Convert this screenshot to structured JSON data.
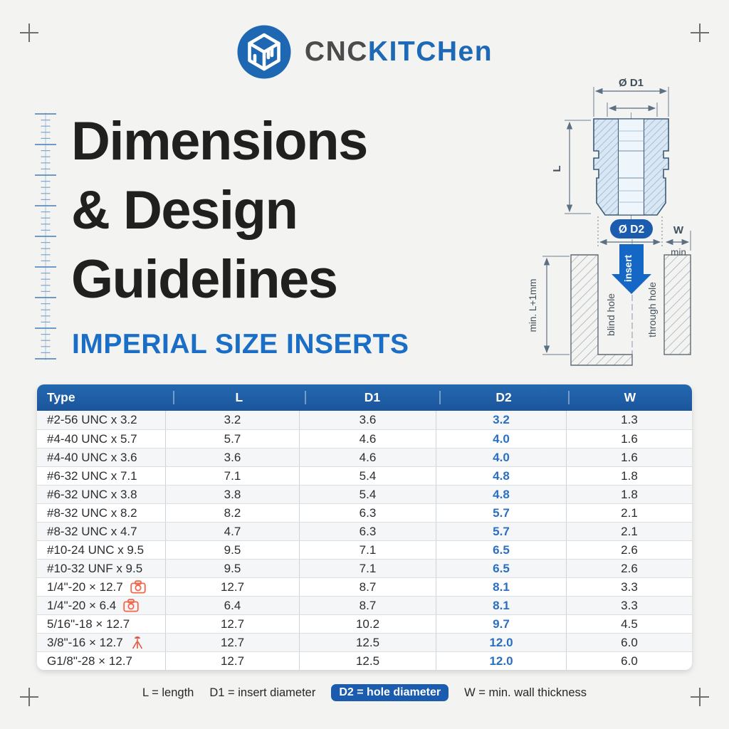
{
  "brand": {
    "name_primary": "CNC",
    "name_secondary": "KITCHen",
    "logo_icon": "cnc-kitchen-cube-icon"
  },
  "title": {
    "line1": "Dimensions",
    "line2": "& Design",
    "line3": "Guidelines",
    "subtitle": "IMPERIAL SIZE INSERTS"
  },
  "diagram": {
    "d1_label": "Ø D1",
    "l_label": "L",
    "d2_label": "Ø D2",
    "w_label": "W",
    "min_label": "min",
    "insert_label": "insert",
    "blind_hole_label": "blind hole",
    "through_hole_label": "through hole",
    "depth_label": "min. L+1mm"
  },
  "table": {
    "columns": [
      "Type",
      "L",
      "D1",
      "D2",
      "W"
    ],
    "rows": [
      {
        "type": "#2-56 UNC x 3.2",
        "icon": null,
        "l": "3.2",
        "d1": "3.6",
        "d2": "3.2",
        "w": "1.3"
      },
      {
        "type": "#4-40 UNC x 5.7",
        "icon": null,
        "l": "5.7",
        "d1": "4.6",
        "d2": "4.0",
        "w": "1.6"
      },
      {
        "type": "#4-40 UNC x 3.6",
        "icon": null,
        "l": "3.6",
        "d1": "4.6",
        "d2": "4.0",
        "w": "1.6"
      },
      {
        "type": "#6-32 UNC x 7.1",
        "icon": null,
        "l": "7.1",
        "d1": "5.4",
        "d2": "4.8",
        "w": "1.8"
      },
      {
        "type": "#6-32 UNC x 3.8",
        "icon": null,
        "l": "3.8",
        "d1": "5.4",
        "d2": "4.8",
        "w": "1.8"
      },
      {
        "type": "#8-32 UNC x 8.2",
        "icon": null,
        "l": "8.2",
        "d1": "6.3",
        "d2": "5.7",
        "w": "2.1"
      },
      {
        "type": "#8-32 UNC x 4.7",
        "icon": null,
        "l": "4.7",
        "d1": "6.3",
        "d2": "5.7",
        "w": "2.1"
      },
      {
        "type": "#10-24 UNC x 9.5",
        "icon": null,
        "l": "9.5",
        "d1": "7.1",
        "d2": "6.5",
        "w": "2.6"
      },
      {
        "type": "#10-32 UNF x 9.5",
        "icon": null,
        "l": "9.5",
        "d1": "7.1",
        "d2": "6.5",
        "w": "2.6"
      },
      {
        "type": "1/4\"-20 × 12.7",
        "icon": "camera-icon",
        "l": "12.7",
        "d1": "8.7",
        "d2": "8.1",
        "w": "3.3"
      },
      {
        "type": "1/4\"-20 × 6.4",
        "icon": "camera-icon",
        "l": "6.4",
        "d1": "8.7",
        "d2": "8.1",
        "w": "3.3"
      },
      {
        "type": "5/16\"-18 × 12.7",
        "icon": null,
        "l": "12.7",
        "d1": "10.2",
        "d2": "9.7",
        "w": "4.5"
      },
      {
        "type": "3/8\"-16 × 12.7",
        "icon": "tripod-icon",
        "l": "12.7",
        "d1": "12.5",
        "d2": "12.0",
        "w": "6.0"
      },
      {
        "type": "G1/8\"-28 × 12.7",
        "icon": null,
        "l": "12.7",
        "d1": "12.5",
        "d2": "12.0",
        "w": "6.0"
      }
    ]
  },
  "legend": {
    "l": "L = length",
    "d1": "D1 = insert diameter",
    "d2": "D2 = hole diameter",
    "w": "W = min. wall thickness"
  },
  "colors": {
    "accent_blue": "#1d5fa8",
    "d2_value_blue": "#2b6fc0",
    "pill_blue": "#1b5cae",
    "icon_orange": "#f2664a"
  }
}
